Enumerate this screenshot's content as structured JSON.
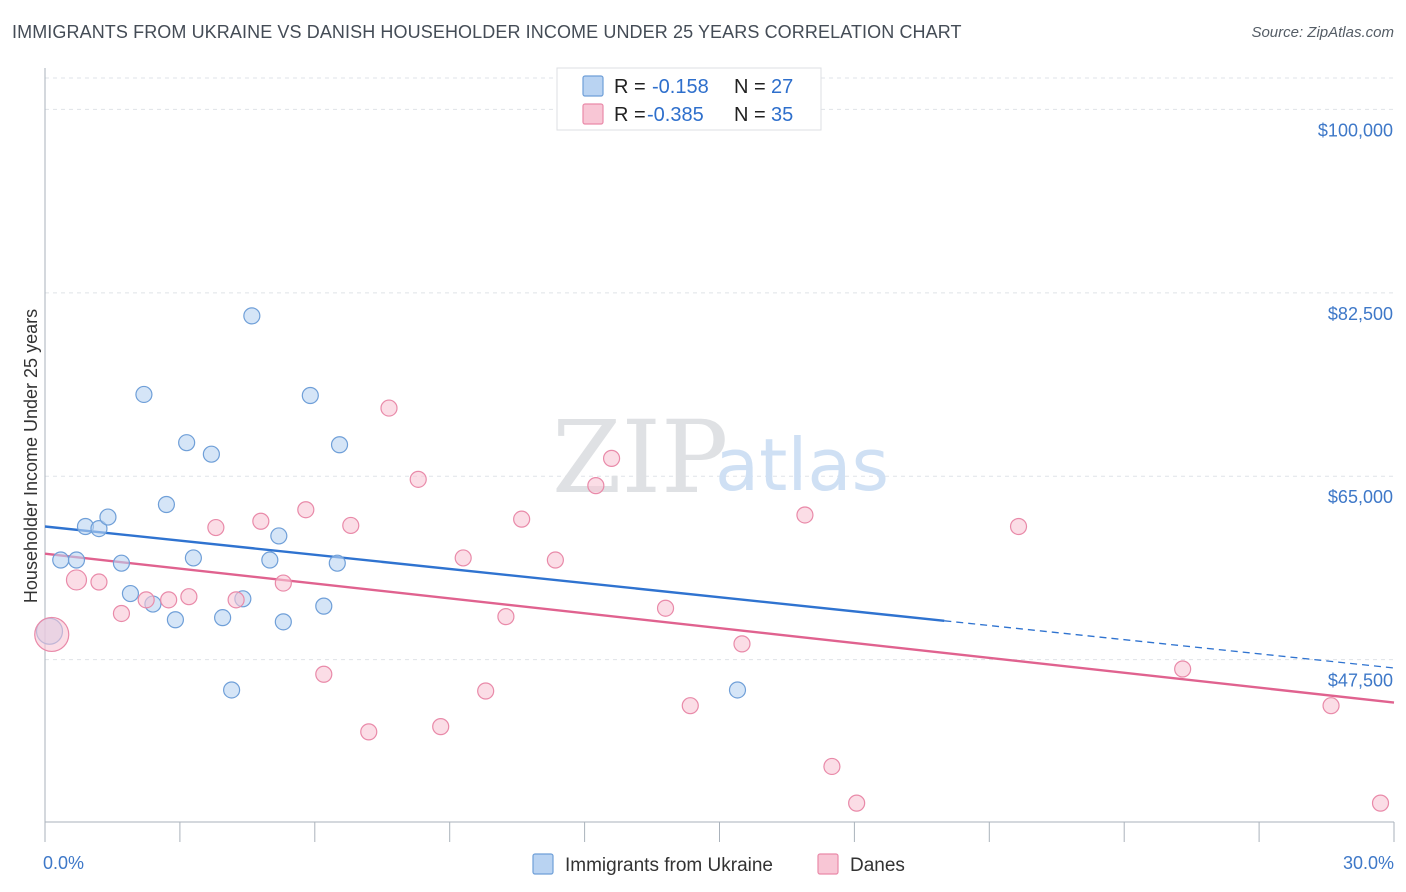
{
  "title": "IMMIGRANTS FROM UKRAINE VS DANISH HOUSEHOLDER INCOME UNDER 25 YEARS CORRELATION CHART",
  "source": "Source: ZipAtlas.com",
  "watermark": {
    "zip": "ZIP",
    "atlas": "atlas"
  },
  "colors": {
    "blue_fill": "#b9d3f2",
    "blue_stroke": "#6f9fd8",
    "blue_line": "#2f73d0",
    "pink_fill": "#f8c6d5",
    "pink_stroke": "#e98aa9",
    "pink_line": "#e0628f",
    "tick_text": "#3e78c8",
    "grid": "#dfe3e8"
  },
  "legend": {
    "rows": [
      {
        "r_label": "R =",
        "r_value": "-0.158",
        "n_label": "N =",
        "n_value": "27"
      },
      {
        "r_label": "R =",
        "r_value": "-0.385",
        "n_label": "N =",
        "n_value": "35"
      }
    ]
  },
  "chart_data": {
    "type": "scatter",
    "title": "IMMIGRANTS FROM UKRAINE VS DANISH HOUSEHOLDER INCOME UNDER 25 YEARS CORRELATION CHART",
    "xlabel": "",
    "ylabel": "Householder Income Under 25 years",
    "xlim": [
      0,
      30
    ],
    "ylim": [
      32000,
      103000
    ],
    "x_tick_labels": [
      "0.0%",
      "30.0%"
    ],
    "y_ticks": [
      100000,
      82500,
      65000,
      47500
    ],
    "y_tick_labels": [
      "$100,000",
      "$82,500",
      "$65,000",
      "$47,500"
    ],
    "series": [
      {
        "name": "Immigrants from Ukraine",
        "color": "#b9d3f2",
        "points": [
          {
            "x": 0.1,
            "y": 50200,
            "size": 13
          },
          {
            "x": 0.35,
            "y": 57000,
            "size": 8
          },
          {
            "x": 0.7,
            "y": 57000,
            "size": 8
          },
          {
            "x": 0.9,
            "y": 60200,
            "size": 8
          },
          {
            "x": 1.2,
            "y": 60000,
            "size": 8
          },
          {
            "x": 1.4,
            "y": 61100,
            "size": 8
          },
          {
            "x": 1.7,
            "y": 56700,
            "size": 8
          },
          {
            "x": 1.9,
            "y": 53800,
            "size": 8
          },
          {
            "x": 2.2,
            "y": 72800,
            "size": 8
          },
          {
            "x": 2.4,
            "y": 52800,
            "size": 8
          },
          {
            "x": 2.7,
            "y": 62300,
            "size": 8
          },
          {
            "x": 2.9,
            "y": 51300,
            "size": 8
          },
          {
            "x": 3.15,
            "y": 68200,
            "size": 8
          },
          {
            "x": 3.3,
            "y": 57200,
            "size": 8
          },
          {
            "x": 3.7,
            "y": 67100,
            "size": 8
          },
          {
            "x": 3.95,
            "y": 51500,
            "size": 8
          },
          {
            "x": 4.15,
            "y": 44600,
            "size": 8
          },
          {
            "x": 4.4,
            "y": 53300,
            "size": 8
          },
          {
            "x": 4.6,
            "y": 80300,
            "size": 8
          },
          {
            "x": 5.0,
            "y": 57000,
            "size": 8
          },
          {
            "x": 5.2,
            "y": 59300,
            "size": 8
          },
          {
            "x": 5.3,
            "y": 51100,
            "size": 8
          },
          {
            "x": 5.9,
            "y": 72700,
            "size": 8
          },
          {
            "x": 6.2,
            "y": 52600,
            "size": 8
          },
          {
            "x": 6.5,
            "y": 56700,
            "size": 8
          },
          {
            "x": 6.55,
            "y": 68000,
            "size": 8
          },
          {
            "x": 15.4,
            "y": 44600,
            "size": 8
          }
        ]
      },
      {
        "name": "Danes",
        "color": "#f8c6d5",
        "points": [
          {
            "x": 0.15,
            "y": 49900,
            "size": 17
          },
          {
            "x": 0.7,
            "y": 55100,
            "size": 10
          },
          {
            "x": 1.2,
            "y": 54900,
            "size": 8
          },
          {
            "x": 1.7,
            "y": 51900,
            "size": 8
          },
          {
            "x": 2.25,
            "y": 53200,
            "size": 8
          },
          {
            "x": 2.75,
            "y": 53200,
            "size": 8
          },
          {
            "x": 3.2,
            "y": 53500,
            "size": 8
          },
          {
            "x": 3.8,
            "y": 60100,
            "size": 8
          },
          {
            "x": 4.25,
            "y": 53200,
            "size": 8
          },
          {
            "x": 4.8,
            "y": 60700,
            "size": 8
          },
          {
            "x": 5.3,
            "y": 54800,
            "size": 8
          },
          {
            "x": 5.8,
            "y": 61800,
            "size": 8
          },
          {
            "x": 6.2,
            "y": 46100,
            "size": 8
          },
          {
            "x": 6.8,
            "y": 60300,
            "size": 8
          },
          {
            "x": 7.2,
            "y": 40600,
            "size": 8
          },
          {
            "x": 7.65,
            "y": 71500,
            "size": 8
          },
          {
            "x": 8.3,
            "y": 64700,
            "size": 8
          },
          {
            "x": 8.8,
            "y": 41100,
            "size": 8
          },
          {
            "x": 9.3,
            "y": 57200,
            "size": 8
          },
          {
            "x": 9.8,
            "y": 44500,
            "size": 8
          },
          {
            "x": 10.25,
            "y": 51600,
            "size": 8
          },
          {
            "x": 10.6,
            "y": 60900,
            "size": 8
          },
          {
            "x": 11.35,
            "y": 57000,
            "size": 8
          },
          {
            "x": 12.25,
            "y": 64100,
            "size": 8
          },
          {
            "x": 12.6,
            "y": 66700,
            "size": 8
          },
          {
            "x": 13.8,
            "y": 52400,
            "size": 8
          },
          {
            "x": 14.35,
            "y": 43100,
            "size": 8
          },
          {
            "x": 15.5,
            "y": 49000,
            "size": 8
          },
          {
            "x": 16.9,
            "y": 61300,
            "size": 8
          },
          {
            "x": 17.5,
            "y": 37300,
            "size": 8
          },
          {
            "x": 18.05,
            "y": 33800,
            "size": 8
          },
          {
            "x": 21.65,
            "y": 60200,
            "size": 8
          },
          {
            "x": 25.3,
            "y": 46600,
            "size": 8
          },
          {
            "x": 28.6,
            "y": 43100,
            "size": 8
          },
          {
            "x": 29.7,
            "y": 33800,
            "size": 8
          }
        ]
      }
    ],
    "trendlines": [
      {
        "series": "Immigrants from Ukraine",
        "solid": {
          "x0": 0,
          "y0": 60200,
          "x1": 20,
          "y1": 51200
        },
        "dashed": {
          "x0": 20,
          "y0": 51200,
          "x1": 30,
          "y1": 46700
        }
      },
      {
        "series": "Danes",
        "solid": {
          "x0": 0,
          "y0": 57600,
          "x1": 30,
          "y1": 43400
        }
      }
    ],
    "legend_position": "bottom-center"
  }
}
